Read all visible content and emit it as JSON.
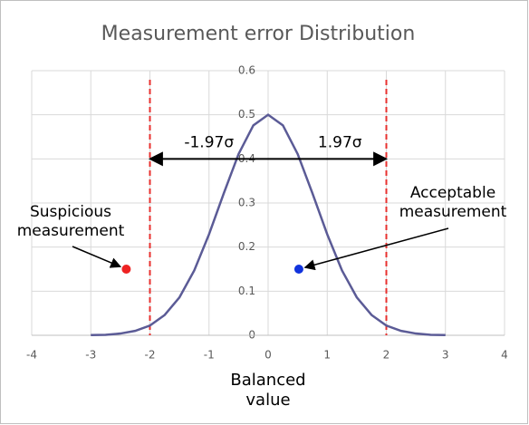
{
  "chart_data": {
    "type": "line",
    "title": "Measurement error Distribution",
    "x_label": [
      "Balanced",
      "value"
    ],
    "x": [
      -3,
      -2.75,
      -2.5,
      -2.25,
      -2,
      -1.75,
      -1.5,
      -1.25,
      -1,
      -0.75,
      -0.5,
      -0.25,
      0,
      0.25,
      0.5,
      0.75,
      1,
      1.25,
      1.5,
      1.75,
      2,
      2.25,
      2.5,
      2.75,
      3
    ],
    "series": [
      {
        "color": "#5b5b96",
        "values": [
          0.0004,
          0.001,
          0.004,
          0.01,
          0.022,
          0.046,
          0.086,
          0.147,
          0.229,
          0.322,
          0.411,
          0.476,
          0.5,
          0.476,
          0.411,
          0.322,
          0.229,
          0.147,
          0.086,
          0.046,
          0.022,
          0.01,
          0.004,
          0.001,
          0.0004
        ]
      }
    ],
    "xlim": [
      -4,
      4
    ],
    "ylim": [
      0,
      0.6
    ],
    "xticks": [
      -4,
      -3,
      -2,
      -1,
      0,
      1,
      2,
      3,
      4
    ],
    "yticks": [
      0,
      0.1,
      0.2,
      0.3,
      0.4,
      0.5,
      0.6
    ],
    "grid": true,
    "reference_lines": [
      {
        "x": -2,
        "color": "#e8312f"
      },
      {
        "x": 2,
        "color": "#e8312f"
      }
    ],
    "intervals": [
      {
        "text": "-1.97σ",
        "x_from": 0,
        "x_to": -2,
        "y": 0.4
      },
      {
        "text": "1.97σ",
        "x_from": 0,
        "x_to": 2,
        "y": 0.4
      }
    ],
    "points": [
      {
        "label": [
          "Suspicious",
          "measurement"
        ],
        "x": -2.4,
        "y": 0.15,
        "color": "#ee2222"
      },
      {
        "label": [
          "Acceptable",
          "measurement"
        ],
        "x": 0.52,
        "y": 0.15,
        "color": "#1133dd"
      }
    ]
  }
}
